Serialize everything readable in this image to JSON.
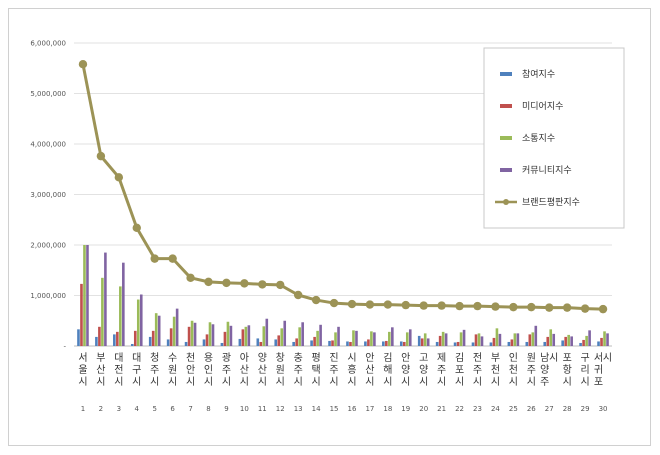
{
  "chart_data": {
    "type": "bar",
    "title": "",
    "xlabel": "",
    "ylabel": "",
    "ylim": [
      0,
      6000000
    ],
    "yticks": [
      0,
      1000000,
      2000000,
      3000000,
      4000000,
      5000000,
      6000000
    ],
    "ytick_labels": [
      "-",
      "1,000,000",
      "2,000,000",
      "3,000,000",
      "4,000,000",
      "5,000,000",
      "6,000,000"
    ],
    "grid": true,
    "legend_position": "right",
    "categories": [
      "서울시",
      "부산시",
      "대전시",
      "대구시",
      "청주시",
      "수원시",
      "천안시",
      "용인시",
      "광주시",
      "아산시",
      "양산시",
      "창원시",
      "충주시",
      "평택시",
      "진주시",
      "시흥시",
      "안산시",
      "김해시",
      "안양시",
      "고양시",
      "제주시",
      "김포시",
      "전주시",
      "부천시",
      "인천시",
      "원주시",
      "남양주시",
      "포항시",
      "구리시",
      "서귀포시"
    ],
    "ranks": [
      "1",
      "2",
      "3",
      "4",
      "5",
      "6",
      "7",
      "8",
      "9",
      "10",
      "11",
      "12",
      "13",
      "14",
      "15",
      "16",
      "17",
      "18",
      "19",
      "20",
      "21",
      "22",
      "23",
      "24",
      "25",
      "26",
      "27",
      "28",
      "29",
      "30"
    ],
    "series": [
      {
        "name": "참여지수",
        "kind": "bar",
        "color": "#4f81bd",
        "values": [
          330000,
          180000,
          230000,
          40000,
          180000,
          130000,
          80000,
          130000,
          60000,
          140000,
          150000,
          130000,
          80000,
          110000,
          100000,
          90000,
          90000,
          90000,
          90000,
          200000,
          80000,
          70000,
          70000,
          70000,
          80000,
          80000,
          80000,
          110000,
          60000,
          90000
        ]
      },
      {
        "name": "미디어지수",
        "kind": "bar",
        "color": "#c0504d",
        "values": [
          1230000,
          380000,
          280000,
          300000,
          300000,
          350000,
          380000,
          230000,
          280000,
          330000,
          80000,
          210000,
          150000,
          180000,
          110000,
          80000,
          130000,
          100000,
          80000,
          150000,
          200000,
          80000,
          230000,
          160000,
          130000,
          230000,
          180000,
          180000,
          120000,
          160000
        ]
      },
      {
        "name": "소통지수",
        "kind": "bar",
        "color": "#9bbb59",
        "values": [
          2000000,
          1350000,
          1180000,
          920000,
          650000,
          580000,
          500000,
          470000,
          480000,
          380000,
          390000,
          350000,
          370000,
          300000,
          270000,
          310000,
          290000,
          280000,
          270000,
          250000,
          280000,
          270000,
          250000,
          350000,
          250000,
          270000,
          330000,
          220000,
          200000,
          290000
        ]
      },
      {
        "name": "커뮤니티지수",
        "kind": "bar",
        "color": "#8064a2",
        "values": [
          2000000,
          1850000,
          1650000,
          1020000,
          600000,
          740000,
          460000,
          430000,
          400000,
          410000,
          540000,
          500000,
          470000,
          420000,
          380000,
          300000,
          270000,
          370000,
          330000,
          150000,
          250000,
          320000,
          190000,
          240000,
          250000,
          400000,
          240000,
          190000,
          310000,
          250000
        ]
      },
      {
        "name": "브랜드평판지수",
        "kind": "line",
        "color": "#9c9356",
        "values": [
          5580000,
          3760000,
          3340000,
          2340000,
          1730000,
          1730000,
          1350000,
          1270000,
          1250000,
          1240000,
          1220000,
          1210000,
          1010000,
          910000,
          850000,
          830000,
          820000,
          820000,
          810000,
          800000,
          800000,
          790000,
          790000,
          780000,
          770000,
          770000,
          760000,
          760000,
          740000,
          730000
        ]
      }
    ]
  }
}
